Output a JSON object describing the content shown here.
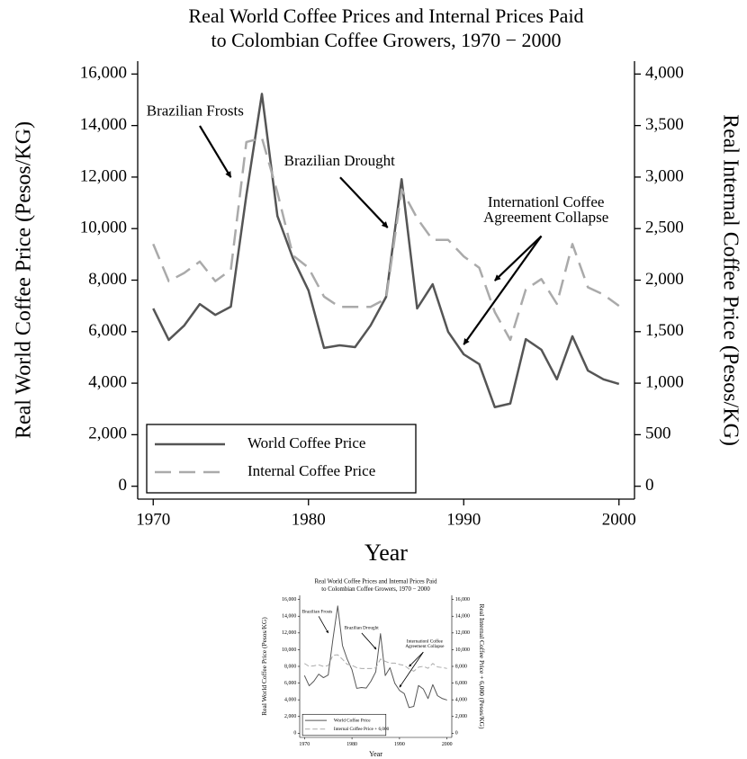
{
  "chart_data": [
    {
      "type": "line",
      "title": [
        "Real World Coffee Prices and Internal Prices Paid",
        "to Colombian Coffee Growers, 1970 − 2000"
      ],
      "x_label": "Year",
      "y_label": "Real World Coffee Price (Pesos/KG)",
      "y2_label": "Real Internal Coffee Price (Pesos/KG)",
      "x": [
        1970,
        1971,
        1972,
        1973,
        1974,
        1975,
        1976,
        1977,
        1978,
        1979,
        1980,
        1981,
        1982,
        1983,
        1984,
        1985,
        1986,
        1987,
        1988,
        1989,
        1990,
        1991,
        1992,
        1993,
        1994,
        1995,
        1996,
        1997,
        1998,
        1999,
        2000
      ],
      "series": [
        {
          "name": "World Coffee Price",
          "color": "#555555",
          "dash": false,
          "values": [
            6900,
            5680,
            6240,
            7070,
            6650,
            6970,
            11300,
            15230,
            10490,
            8850,
            7600,
            5370,
            5470,
            5400,
            6240,
            7350,
            11920,
            6900,
            7840,
            5990,
            5120,
            4740,
            3070,
            3210,
            5710,
            5300,
            4150,
            5820,
            4490,
            4150,
            3970
          ]
        },
        {
          "name": "Internal Coffee Price",
          "color": "#aaaaaa",
          "dash": true,
          "axis": "y2",
          "values": [
            2350,
            1990,
            2070,
            2180,
            1990,
            2100,
            3340,
            3380,
            2850,
            2240,
            2120,
            1840,
            1740,
            1740,
            1740,
            1820,
            2880,
            2600,
            2390,
            2390,
            2230,
            2120,
            1690,
            1420,
            1910,
            2010,
            1770,
            2350,
            1930,
            1860,
            1750
          ]
        }
      ],
      "annotations": [
        [
          "Brazilian Frosts"
        ],
        [
          "Brazilian Drought"
        ],
        [
          "Internationl Coffee",
          "Agreement Collapse"
        ]
      ],
      "xlim": [
        1969,
        2001
      ],
      "xticks": [
        1970,
        1980,
        1990,
        2000
      ],
      "ylim": [
        -500,
        16500
      ],
      "yticks": [
        0,
        {
          "value": 2000,
          "label": "2,000"
        },
        {
          "value": 4000,
          "label": "4,000"
        },
        {
          "value": 6000,
          "label": "6,000"
        },
        {
          "value": 8000,
          "label": "8,000"
        },
        {
          "value": 10000,
          "label": "10,000"
        },
        {
          "value": 12000,
          "label": "12,000"
        },
        {
          "value": 14000,
          "label": "14,000"
        },
        {
          "value": 16000,
          "label": "16,000"
        }
      ],
      "y2lim": [
        -125,
        4125
      ],
      "y2ticks": [
        0,
        500,
        {
          "value": 1000,
          "label": "1,000"
        },
        {
          "value": 1500,
          "label": "1,500"
        },
        {
          "value": 2000,
          "label": "2,000"
        },
        {
          "value": 2500,
          "label": "2,500"
        },
        {
          "value": 3000,
          "label": "3,000"
        },
        {
          "value": 3500,
          "label": "3,500"
        },
        {
          "value": 4000,
          "label": "4,000"
        }
      ],
      "legend": "lower left"
    },
    {
      "type": "line",
      "title": [
        "Real World Coffee Prices and Internal Prices Paid",
        "to Colombian Coffee Growers, 1970 − 2000"
      ],
      "x_label": "Year",
      "y_label": "Real World Coffee Price (Pesos/KG)",
      "y2_label": "Real Internal Coffee Price + 6,000 (Pesos/KG)",
      "x": [
        1970,
        1971,
        1972,
        1973,
        1974,
        1975,
        1976,
        1977,
        1978,
        1979,
        1980,
        1981,
        1982,
        1983,
        1984,
        1985,
        1986,
        1987,
        1988,
        1989,
        1990,
        1991,
        1992,
        1993,
        1994,
        1995,
        1996,
        1997,
        1998,
        1999,
        2000
      ],
      "series": [
        {
          "name": "World Coffee Price",
          "color": "#555555",
          "dash": false,
          "values": [
            6900,
            5680,
            6240,
            7070,
            6650,
            6970,
            11300,
            15230,
            10490,
            8850,
            7600,
            5370,
            5470,
            5400,
            6240,
            7350,
            11920,
            6900,
            7840,
            5990,
            5120,
            4740,
            3070,
            3210,
            5710,
            5300,
            4150,
            5820,
            4490,
            4150,
            3970
          ]
        },
        {
          "name": "Internal Coffee Price + 6,000",
          "color": "#aaaaaa",
          "dash": true,
          "axis": "y2",
          "values": [
            8350,
            7990,
            8070,
            8180,
            7990,
            8100,
            9340,
            9380,
            8850,
            8240,
            8120,
            7840,
            7740,
            7740,
            7740,
            7820,
            8880,
            8600,
            8390,
            8390,
            8230,
            8120,
            7690,
            7420,
            7910,
            8010,
            7770,
            8350,
            7930,
            7860,
            7750
          ]
        }
      ],
      "annotations": [
        [
          "Brazilian Frosts"
        ],
        [
          "Brazilian Drought"
        ],
        [
          "Internationl Coffee",
          "Agreement Collapse"
        ]
      ],
      "xlim": [
        1969,
        2001
      ],
      "xticks": [
        1970,
        1980,
        1990,
        2000
      ],
      "ylim": [
        -500,
        16500
      ],
      "yticks": [
        0,
        {
          "value": 2000,
          "label": "2,000"
        },
        {
          "value": 4000,
          "label": "4,000"
        },
        {
          "value": 6000,
          "label": "6,000"
        },
        {
          "value": 8000,
          "label": "8,000"
        },
        {
          "value": 10000,
          "label": "10,000"
        },
        {
          "value": 12000,
          "label": "12,000"
        },
        {
          "value": 14000,
          "label": "14,000"
        },
        {
          "value": 16000,
          "label": "16,000"
        }
      ],
      "y2lim": [
        -500,
        16500
      ],
      "y2ticks": [
        0,
        {
          "value": 2000,
          "label": "2,000"
        },
        {
          "value": 4000,
          "label": "4,000"
        },
        {
          "value": 6000,
          "label": "6,000"
        },
        {
          "value": 8000,
          "label": "8,000"
        },
        {
          "value": 10000,
          "label": "10,000"
        },
        {
          "value": 12000,
          "label": "12,000"
        },
        {
          "value": 14000,
          "label": "14,000"
        },
        {
          "value": 16000,
          "label": "16,000"
        }
      ],
      "legend": "lower left"
    }
  ]
}
